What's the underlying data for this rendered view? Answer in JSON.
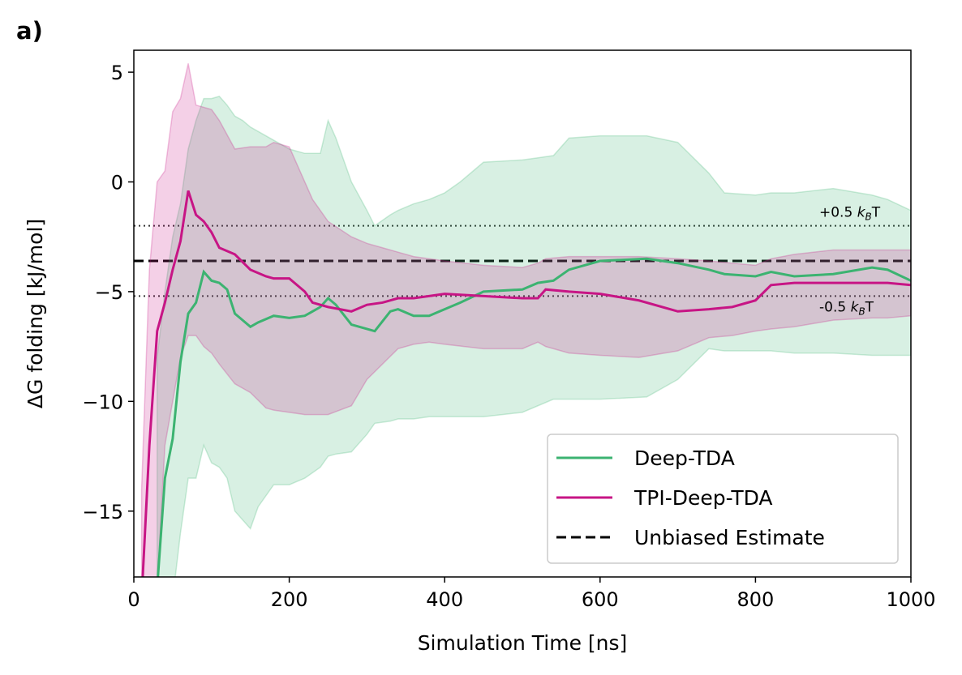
{
  "chart_data": {
    "type": "line",
    "panel_label": "a)",
    "xlabel": "Simulation Time [ns]",
    "ylabel": "ΔG folding [kJ/mol]",
    "xlim": [
      0,
      1000
    ],
    "ylim": [
      -18,
      6
    ],
    "xticks": [
      0,
      200,
      400,
      600,
      800,
      1000
    ],
    "yticks": [
      {
        "value": -15,
        "label": "−15"
      },
      {
        "value": -10,
        "label": "−10"
      },
      {
        "value": -5,
        "label": "−5"
      },
      0,
      5
    ],
    "legend": "lower right",
    "series": [
      {
        "name": "Deep-TDA",
        "color": "#3cb371",
        "x": [
          30,
          40,
          50,
          60,
          70,
          80,
          90,
          100,
          110,
          120,
          130,
          140,
          150,
          160,
          180,
          200,
          220,
          240,
          250,
          260,
          280,
          300,
          310,
          330,
          340,
          360,
          380,
          400,
          420,
          450,
          500,
          520,
          540,
          560,
          600,
          660,
          700,
          740,
          760,
          800,
          820,
          850,
          900,
          950,
          970,
          1000
        ],
        "values": [
          -18.5,
          -13.5,
          -11.7,
          -8.2,
          -6.0,
          -5.5,
          -4.1,
          -4.5,
          -4.6,
          -4.9,
          -6.0,
          -6.3,
          -6.6,
          -6.4,
          -6.1,
          -6.2,
          -6.1,
          -5.7,
          -5.3,
          -5.6,
          -6.5,
          -6.7,
          -6.8,
          -5.9,
          -5.8,
          -6.1,
          -6.1,
          -5.8,
          -5.5,
          -5.0,
          -4.9,
          -4.6,
          -4.5,
          -4.0,
          -3.6,
          -3.5,
          -3.7,
          -4.0,
          -4.2,
          -4.3,
          -4.1,
          -4.3,
          -4.2,
          -3.9,
          -4.0,
          -4.5
        ],
        "upper": [
          -8.0,
          -5.0,
          -2.5,
          -1.0,
          1.5,
          2.8,
          3.8,
          3.8,
          3.9,
          3.5,
          3.0,
          2.8,
          2.5,
          2.3,
          1.9,
          1.5,
          1.3,
          1.3,
          2.8,
          2.0,
          0.0,
          -1.3,
          -2.0,
          -1.5,
          -1.3,
          -1.0,
          -0.8,
          -0.5,
          0.0,
          0.9,
          1.0,
          1.1,
          1.2,
          2.0,
          2.1,
          2.1,
          1.8,
          0.4,
          -0.5,
          -0.6,
          -0.5,
          -0.5,
          -0.3,
          -0.6,
          -0.8,
          -1.3
        ],
        "lower": [
          -19.0,
          -19.0,
          -19.0,
          -16.0,
          -13.5,
          -13.5,
          -12.0,
          -12.8,
          -13.0,
          -13.5,
          -15.0,
          -15.4,
          -15.8,
          -14.8,
          -13.8,
          -13.8,
          -13.5,
          -13.0,
          -12.5,
          -12.4,
          -12.3,
          -11.5,
          -11.0,
          -10.9,
          -10.8,
          -10.8,
          -10.7,
          -10.7,
          -10.7,
          -10.7,
          -10.5,
          -10.2,
          -9.9,
          -9.9,
          -9.9,
          -9.8,
          -9.0,
          -7.6,
          -7.7,
          -7.7,
          -7.7,
          -7.8,
          -7.8,
          -7.9,
          -7.9,
          -7.9
        ]
      },
      {
        "name": "TPI-Deep-TDA",
        "color": "#c71585",
        "x": [
          10,
          20,
          30,
          40,
          50,
          60,
          70,
          80,
          90,
          100,
          110,
          130,
          150,
          170,
          180,
          200,
          220,
          230,
          250,
          280,
          300,
          320,
          340,
          360,
          380,
          400,
          450,
          500,
          520,
          530,
          560,
          600,
          650,
          700,
          740,
          770,
          800,
          820,
          850,
          900,
          950,
          970,
          1000
        ],
        "values": [
          -19.0,
          -12.0,
          -6.8,
          -5.5,
          -4.0,
          -2.7,
          -0.4,
          -1.5,
          -1.8,
          -2.3,
          -3.0,
          -3.3,
          -4.0,
          -4.3,
          -4.4,
          -4.4,
          -5.0,
          -5.5,
          -5.7,
          -5.9,
          -5.6,
          -5.5,
          -5.3,
          -5.3,
          -5.2,
          -5.1,
          -5.2,
          -5.3,
          -5.3,
          -4.9,
          -5.0,
          -5.1,
          -5.4,
          -5.9,
          -5.8,
          -5.7,
          -5.4,
          -4.7,
          -4.6,
          -4.6,
          -4.6,
          -4.6,
          -4.7
        ],
        "upper": [
          -14.0,
          -4.0,
          0.0,
          0.5,
          3.2,
          3.8,
          5.4,
          3.5,
          3.4,
          3.3,
          2.8,
          1.5,
          1.6,
          1.6,
          1.8,
          1.6,
          0.0,
          -0.8,
          -1.8,
          -2.5,
          -2.8,
          -3.0,
          -3.2,
          -3.4,
          -3.5,
          -3.6,
          -3.8,
          -3.9,
          -3.7,
          -3.5,
          -3.4,
          -3.4,
          -3.4,
          -3.5,
          -3.6,
          -3.7,
          -3.8,
          -3.5,
          -3.3,
          -3.1,
          -3.1,
          -3.1,
          -3.1
        ],
        "lower": [
          -19.0,
          -19.0,
          -18.5,
          -12.0,
          -10.0,
          -8.0,
          -7.0,
          -7.0,
          -7.5,
          -7.8,
          -8.3,
          -9.2,
          -9.6,
          -10.3,
          -10.4,
          -10.5,
          -10.6,
          -10.6,
          -10.6,
          -10.2,
          -9.0,
          -8.3,
          -7.6,
          -7.4,
          -7.3,
          -7.4,
          -7.6,
          -7.6,
          -7.3,
          -7.5,
          -7.8,
          -7.9,
          -8.0,
          -7.7,
          -7.1,
          -7.0,
          -6.8,
          -6.7,
          -6.6,
          -6.3,
          -6.2,
          -6.2,
          -6.1
        ]
      }
    ],
    "reference_lines": [
      {
        "name": "Unbiased Estimate",
        "value": -3.6,
        "color": "#000000",
        "style": "dashed"
      },
      {
        "value": -2.0,
        "color": "#333333",
        "style": "dotted",
        "label": [
          "+0.5 ",
          "k",
          "B",
          "T"
        ],
        "label_side": "above"
      },
      {
        "value": -5.2,
        "color": "#333333",
        "style": "dotted",
        "label": [
          "-0.5 ",
          "k",
          "B",
          "T"
        ],
        "label_side": "below"
      }
    ]
  }
}
